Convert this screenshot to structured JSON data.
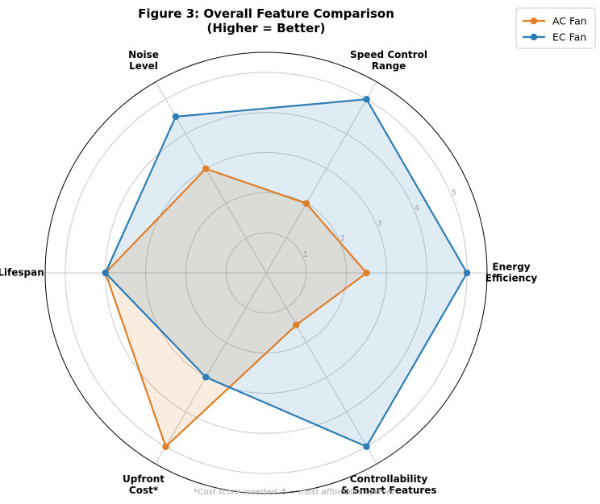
{
  "chart_data": {
    "type": "radar",
    "title": [
      "Figure 3: Overall Feature Comparison",
      "(Higher = Better)"
    ],
    "axes": [
      [
        "Energy",
        "Efficiency"
      ],
      [
        "Speed Control",
        "Range"
      ],
      [
        "Noise",
        "Level"
      ],
      [
        "Lifespan"
      ],
      [
        "Upfront",
        "Cost*"
      ],
      [
        "Controllability",
        "& Smart Features"
      ]
    ],
    "r_ticks": [
      1,
      2,
      3,
      4,
      5
    ],
    "r_max": 5.5,
    "grid": true,
    "legend_position": "top-right",
    "series": [
      {
        "name": "AC Fan",
        "color": "#e07f2a",
        "values": [
          2.5,
          2.0,
          3.0,
          4.0,
          5.0,
          1.5
        ]
      },
      {
        "name": "EC Fan",
        "color": "#2f7db5",
        "values": [
          5.0,
          5.0,
          4.5,
          4.0,
          3.0,
          5.0
        ]
      }
    ],
    "footnote": "*Cost score inverted: 5 = most affordable upfront"
  }
}
